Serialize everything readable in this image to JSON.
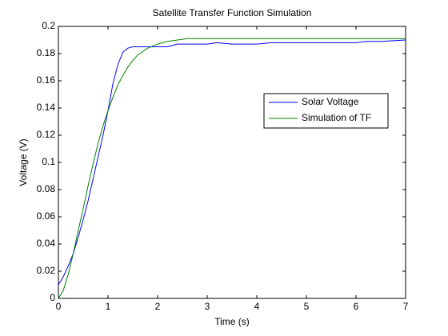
{
  "chart_data": {
    "type": "line",
    "title": "Satellite Transfer Function Simulation",
    "x_label": "Time (s)",
    "y_label": "Voltage (V)",
    "x": [
      0,
      0.1,
      0.2,
      0.3,
      0.4,
      0.5,
      0.6,
      0.7,
      0.8,
      0.9,
      1.0,
      1.1,
      1.2,
      1.3,
      1.4,
      1.5,
      1.6,
      1.8,
      2.0,
      2.2,
      2.4,
      2.6,
      2.8,
      3.0,
      3.2,
      3.5,
      4,
      4.3,
      4.5,
      5,
      5.5,
      6,
      6.2,
      6.5,
      7
    ],
    "series": [
      {
        "name": "Solar Voltage",
        "color": "#0000ff",
        "values": [
          0.01,
          0.016,
          0.024,
          0.033,
          0.045,
          0.058,
          0.072,
          0.088,
          0.104,
          0.12,
          0.138,
          0.158,
          0.172,
          0.181,
          0.184,
          0.185,
          0.185,
          0.185,
          0.185,
          0.185,
          0.187,
          0.187,
          0.187,
          0.187,
          0.188,
          0.187,
          0.187,
          0.188,
          0.188,
          0.188,
          0.188,
          0.188,
          0.189,
          0.189,
          0.19
        ]
      },
      {
        "name": "Simulation of TF",
        "color": "#008000",
        "values": [
          0,
          0.006,
          0.018,
          0.033,
          0.05,
          0.066,
          0.083,
          0.099,
          0.114,
          0.127,
          0.138,
          0.148,
          0.157,
          0.164,
          0.17,
          0.175,
          0.179,
          0.184,
          0.187,
          0.189,
          0.19,
          0.191,
          0.191,
          0.191,
          0.191,
          0.191,
          0.191,
          0.191,
          0.191,
          0.191,
          0.191,
          0.191,
          0.191,
          0.191,
          0.191
        ]
      }
    ],
    "xlim": [
      0,
      7
    ],
    "xticks": [
      0,
      1,
      2,
      3,
      4,
      5,
      6,
      7
    ],
    "ylim": [
      0,
      0.2
    ],
    "yticks": [
      0,
      0.02,
      0.04,
      0.06,
      0.08,
      0.1,
      0.12,
      0.14,
      0.16,
      0.18,
      0.2
    ],
    "grid": false,
    "legend": "northeast"
  }
}
